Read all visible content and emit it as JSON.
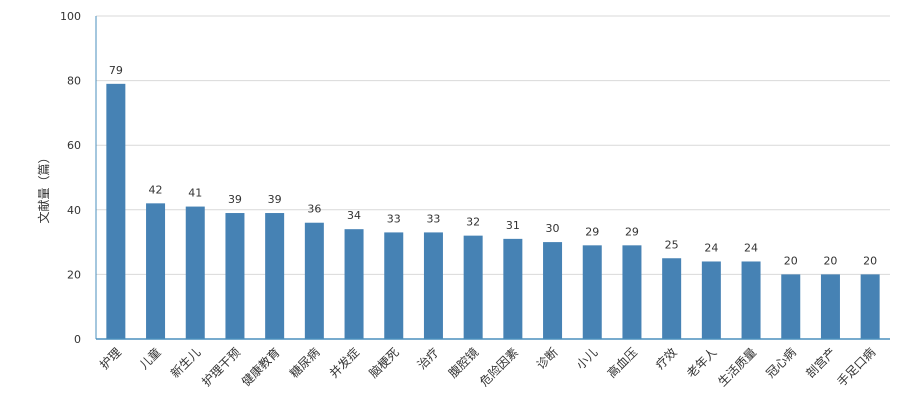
{
  "chart_data": {
    "type": "bar",
    "title": "",
    "xlabel": "",
    "ylabel": "文献量（篇）",
    "ylim": [
      0,
      100
    ],
    "yticks": [
      0,
      20,
      40,
      60,
      80,
      100
    ],
    "grid": "horizontal",
    "legend": "none",
    "bar_color": "#4682b4",
    "axis_color": "#4a8fbd",
    "grid_color": "#d9d9d9",
    "categories": [
      "护理",
      "儿童",
      "新生儿",
      "护理干预",
      "健康教育",
      "糖尿病",
      "并发症",
      "脑梗死",
      "治疗",
      "腹腔镜",
      "危险因素",
      "诊断",
      "小儿",
      "高血压",
      "疗效",
      "老年人",
      "生活质量",
      "冠心病",
      "剖宫产",
      "手足口病"
    ],
    "values": [
      79,
      42,
      41,
      39,
      39,
      36,
      34,
      33,
      33,
      32,
      31,
      30,
      29,
      29,
      25,
      24,
      24,
      20,
      20,
      20
    ]
  }
}
